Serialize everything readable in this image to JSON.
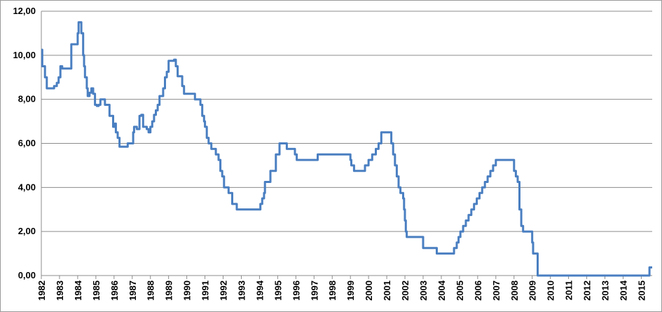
{
  "chart_data": {
    "type": "line",
    "title": "",
    "xlabel": "",
    "ylabel": "",
    "xlim": [
      1982.0,
      2015.6
    ],
    "ylim": [
      0,
      12
    ],
    "y_ticks": [
      0,
      2,
      4,
      6,
      8,
      10,
      12
    ],
    "y_tick_labels": [
      "0,00",
      "2,00",
      "4,00",
      "6,00",
      "8,00",
      "10,00",
      "12,00"
    ],
    "x_ticks": [
      1982,
      1983,
      1984,
      1985,
      1986,
      1987,
      1988,
      1989,
      1990,
      1991,
      1992,
      1993,
      1994,
      1995,
      1996,
      1997,
      1998,
      1999,
      2000,
      2001,
      2002,
      2003,
      2004,
      2005,
      2006,
      2007,
      2008,
      2009,
      2010,
      2011,
      2012,
      2013,
      2014,
      2015
    ],
    "x_tick_labels": [
      "1982",
      "1983",
      "1984",
      "1985",
      "1986",
      "1987",
      "1988",
      "1989",
      "1990",
      "1991",
      "1992",
      "1993",
      "1994",
      "1995",
      "1996",
      "1997",
      "1998",
      "1999",
      "2000",
      "2001",
      "2002",
      "2003",
      "2004",
      "2005",
      "2006",
      "2007",
      "2008",
      "2009",
      "2010",
      "2011",
      "2012",
      "2013",
      "2014",
      "2015"
    ],
    "grid": "horizontal",
    "legend": "none",
    "series": [
      {
        "color": "#4a7fc1",
        "step": true,
        "points": [
          [
            1982.0,
            10.25
          ],
          [
            1982.05,
            9.5
          ],
          [
            1982.2,
            9.0
          ],
          [
            1982.3,
            8.5
          ],
          [
            1982.7,
            8.6
          ],
          [
            1982.85,
            8.75
          ],
          [
            1982.95,
            9.0
          ],
          [
            1983.05,
            9.5
          ],
          [
            1983.15,
            9.4
          ],
          [
            1983.55,
            9.4
          ],
          [
            1983.65,
            10.5
          ],
          [
            1983.95,
            10.5
          ],
          [
            1984.0,
            11.0
          ],
          [
            1984.05,
            11.5
          ],
          [
            1984.2,
            11.0
          ],
          [
            1984.3,
            10.0
          ],
          [
            1984.35,
            9.5
          ],
          [
            1984.4,
            9.0
          ],
          [
            1984.5,
            8.5
          ],
          [
            1984.55,
            8.15
          ],
          [
            1984.65,
            8.3
          ],
          [
            1984.75,
            8.5
          ],
          [
            1984.85,
            8.25
          ],
          [
            1984.95,
            7.75
          ],
          [
            1985.05,
            7.7
          ],
          [
            1985.15,
            7.75
          ],
          [
            1985.25,
            8.0
          ],
          [
            1985.5,
            7.75
          ],
          [
            1985.75,
            7.25
          ],
          [
            1985.95,
            6.75
          ],
          [
            1986.05,
            6.9
          ],
          [
            1986.1,
            6.5
          ],
          [
            1986.2,
            6.25
          ],
          [
            1986.3,
            5.85
          ],
          [
            1986.75,
            6.0
          ],
          [
            1987.05,
            6.5
          ],
          [
            1987.1,
            6.75
          ],
          [
            1987.25,
            6.65
          ],
          [
            1987.4,
            7.25
          ],
          [
            1987.5,
            7.3
          ],
          [
            1987.6,
            6.75
          ],
          [
            1987.8,
            6.65
          ],
          [
            1987.9,
            6.5
          ],
          [
            1988.0,
            6.75
          ],
          [
            1988.1,
            7.0
          ],
          [
            1988.2,
            7.3
          ],
          [
            1988.3,
            7.5
          ],
          [
            1988.4,
            7.75
          ],
          [
            1988.5,
            8.15
          ],
          [
            1988.7,
            8.5
          ],
          [
            1988.8,
            9.0
          ],
          [
            1988.9,
            9.25
          ],
          [
            1989.0,
            9.75
          ],
          [
            1989.3,
            9.8
          ],
          [
            1989.4,
            9.5
          ],
          [
            1989.5,
            9.05
          ],
          [
            1989.75,
            8.6
          ],
          [
            1989.85,
            8.25
          ],
          [
            1990.25,
            8.25
          ],
          [
            1990.45,
            8.0
          ],
          [
            1990.75,
            7.75
          ],
          [
            1990.85,
            7.25
          ],
          [
            1990.95,
            7.0
          ],
          [
            1991.0,
            6.75
          ],
          [
            1991.1,
            6.25
          ],
          [
            1991.2,
            6.0
          ],
          [
            1991.35,
            5.75
          ],
          [
            1991.6,
            5.5
          ],
          [
            1991.75,
            5.25
          ],
          [
            1991.85,
            4.75
          ],
          [
            1991.95,
            4.5
          ],
          [
            1992.05,
            4.0
          ],
          [
            1992.3,
            3.75
          ],
          [
            1992.5,
            3.25
          ],
          [
            1992.75,
            3.0
          ],
          [
            1994.05,
            3.25
          ],
          [
            1994.15,
            3.5
          ],
          [
            1994.25,
            3.75
          ],
          [
            1994.3,
            4.25
          ],
          [
            1994.6,
            4.75
          ],
          [
            1994.9,
            5.5
          ],
          [
            1995.1,
            6.0
          ],
          [
            1995.5,
            5.75
          ],
          [
            1995.95,
            5.5
          ],
          [
            1996.05,
            5.25
          ],
          [
            1997.2,
            5.5
          ],
          [
            1999.0,
            5.25
          ],
          [
            1999.05,
            5.0
          ],
          [
            1999.2,
            4.75
          ],
          [
            1999.8,
            5.0
          ],
          [
            2000.0,
            5.25
          ],
          [
            2000.2,
            5.5
          ],
          [
            2000.4,
            5.75
          ],
          [
            2000.55,
            6.0
          ],
          [
            2000.7,
            6.5
          ],
          [
            2001.25,
            6.0
          ],
          [
            2001.35,
            5.5
          ],
          [
            2001.45,
            5.0
          ],
          [
            2001.55,
            4.5
          ],
          [
            2001.65,
            4.0
          ],
          [
            2001.75,
            3.75
          ],
          [
            2001.9,
            3.5
          ],
          [
            2001.95,
            3.0
          ],
          [
            2002.0,
            2.5
          ],
          [
            2002.05,
            2.0
          ],
          [
            2002.1,
            1.75
          ],
          [
            2003.0,
            1.25
          ],
          [
            2003.75,
            1.0
          ],
          [
            2004.7,
            1.25
          ],
          [
            2004.85,
            1.5
          ],
          [
            2004.95,
            1.75
          ],
          [
            2005.05,
            2.0
          ],
          [
            2005.2,
            2.25
          ],
          [
            2005.35,
            2.5
          ],
          [
            2005.5,
            2.75
          ],
          [
            2005.65,
            3.0
          ],
          [
            2005.8,
            3.25
          ],
          [
            2005.95,
            3.5
          ],
          [
            2006.1,
            3.75
          ],
          [
            2006.25,
            4.0
          ],
          [
            2006.4,
            4.25
          ],
          [
            2006.55,
            4.5
          ],
          [
            2006.7,
            4.75
          ],
          [
            2006.85,
            5.0
          ],
          [
            2007.0,
            5.25
          ],
          [
            2008.0,
            4.75
          ],
          [
            2008.1,
            4.5
          ],
          [
            2008.2,
            4.25
          ],
          [
            2008.3,
            3.0
          ],
          [
            2008.4,
            2.25
          ],
          [
            2008.5,
            2.0
          ],
          [
            2009.0,
            1.5
          ],
          [
            2009.05,
            1.0
          ],
          [
            2009.3,
            0.0
          ],
          [
            2015.45,
            0.0
          ],
          [
            2015.45,
            0.37
          ],
          [
            2015.6,
            0.37
          ]
        ]
      }
    ]
  }
}
